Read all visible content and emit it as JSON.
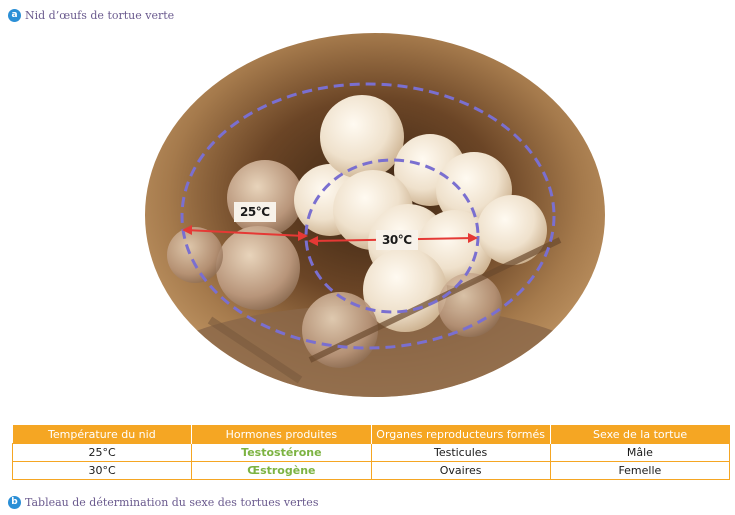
{
  "figure_a": {
    "badge": "a",
    "caption": "Nid d’œufs de tortue verte"
  },
  "figure_b": {
    "badge": "b",
    "caption": "Tableau de détermination du sexe des tortues vertes"
  },
  "labels": {
    "temp_25": "25°C",
    "temp_30": "30°C"
  },
  "table": {
    "headers": [
      "Température du nid",
      "Hormones produites",
      "Organes reproducteurs formés",
      "Sexe de la tortue"
    ],
    "rows": [
      [
        "25°C",
        "Testostérone",
        "Testicules",
        "Mâle"
      ],
      [
        "30°C",
        "Œstrogène",
        "Ovaires",
        "Femelle"
      ]
    ]
  },
  "colors": {
    "header_bg": "#f5a623",
    "hormone_text": "#7cb342",
    "badge": "#2b8fd6",
    "circle_dash": "#7a6fd0",
    "arrow": "#e53935"
  }
}
